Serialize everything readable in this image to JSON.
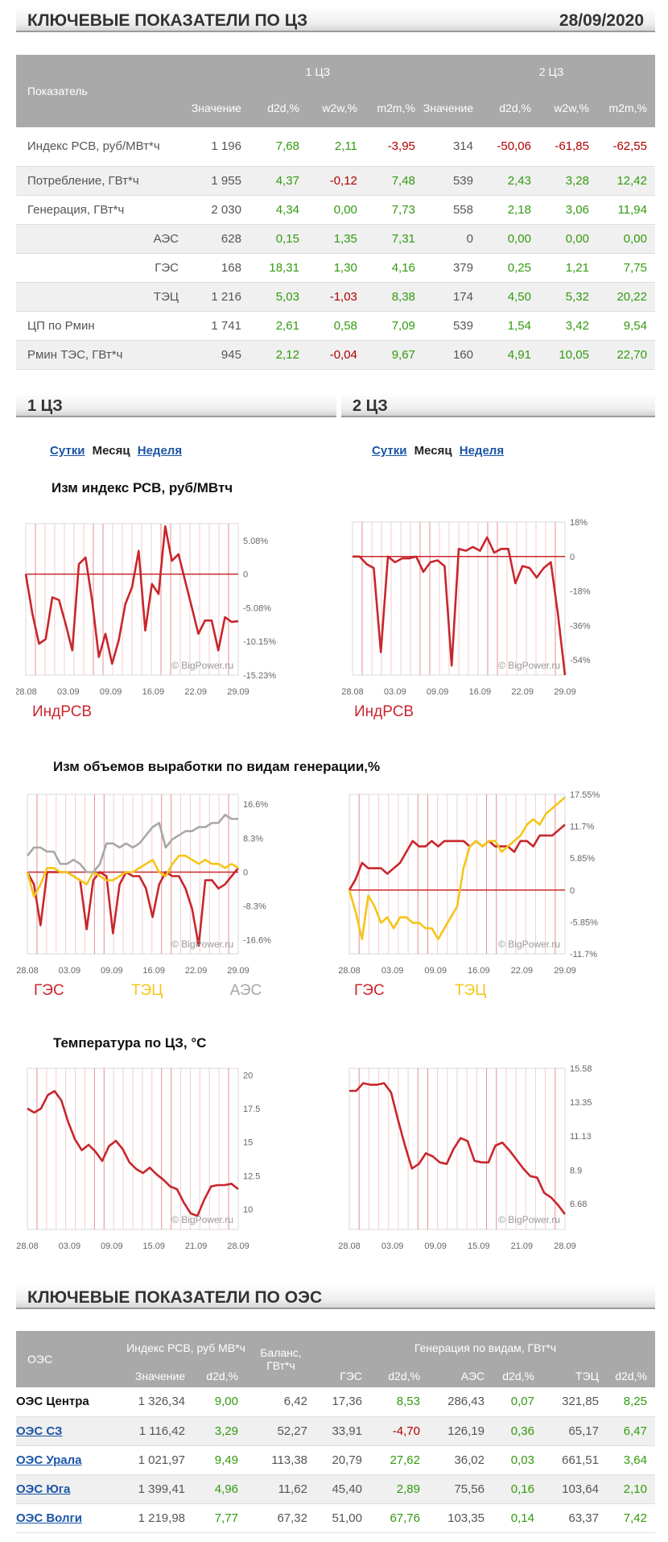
{
  "header1": {
    "title": "КЛЮЧЕВЫЕ ПОКАЗАТЕЛИ ПО ЦЗ",
    "date": "28/09/2020"
  },
  "key_table": {
    "label_col": "Показатель",
    "zone1": "1 ЦЗ",
    "zone2": "2 ЦЗ",
    "subcols": [
      "Значение",
      "d2d,%",
      "w2w,%",
      "m2m,%",
      "Значение",
      "d2d,%",
      "w2w,%",
      "m2m,%"
    ],
    "rows": [
      {
        "label": "Индекс РСВ, руб/МВт*ч",
        "v": [
          "1 196",
          "7,68",
          "2,11",
          "-3,95",
          "314",
          "-50,06",
          "-61,85",
          "-62,55"
        ]
      },
      {
        "label": "Потребление, ГВт*ч",
        "v": [
          "1 955",
          "4,37",
          "-0,12",
          "7,48",
          "539",
          "2,43",
          "3,28",
          "12,42"
        ]
      },
      {
        "label": "Генерация, ГВт*ч",
        "v": [
          "2 030",
          "4,34",
          "0,00",
          "7,73",
          "558",
          "2,18",
          "3,06",
          "11,94"
        ]
      },
      {
        "label": "АЭС",
        "v": [
          "628",
          "0,15",
          "1,35",
          "7,31",
          "0",
          "0,00",
          "0,00",
          "0,00"
        ]
      },
      {
        "label": "ГЭС",
        "v": [
          "168",
          "18,31",
          "1,30",
          "4,16",
          "379",
          "0,25",
          "1,21",
          "7,75"
        ]
      },
      {
        "label": "ТЭЦ",
        "v": [
          "1 216",
          "5,03",
          "-1,03",
          "8,38",
          "174",
          "4,50",
          "5,32",
          "20,22"
        ]
      },
      {
        "label": "ЦП по Рмин",
        "v": [
          "1 741",
          "2,61",
          "0,58",
          "7,09",
          "539",
          "1,54",
          "3,42",
          "9,54"
        ]
      },
      {
        "label": "Рмин ТЭС, ГВт*ч",
        "v": [
          "945",
          "2,12",
          "-0,04",
          "9,67",
          "160",
          "4,91",
          "10,05",
          "22,70"
        ]
      }
    ]
  },
  "zone_headers": {
    "left": "1 ЦЗ",
    "right": "2 ЦЗ"
  },
  "tabs": {
    "day": "Сутки",
    "month": "Месяц",
    "week": "Неделя"
  },
  "chart_titles": {
    "price": "Изм индекс РСВ, руб/МВтч",
    "generation": "Изм объемов выработки по видам генерации,%",
    "temperature": "Температура по ЦЗ, °C"
  },
  "watermark": "© BigPower.ru",
  "colors": {
    "red": "#c8262c",
    "yellow": "#f5c518",
    "gray": "#a8a8a8",
    "grid": "#e8a0a0",
    "green": "#329a0e",
    "neg": "#b00000"
  },
  "chart_data": [
    {
      "type": "line",
      "zone": "1 ЦЗ",
      "title": "Изм индекс РСВ, руб/МВтч",
      "xticks": [
        "28.08",
        "03.09",
        "09.09",
        "16.09",
        "22.09",
        "29.09"
      ],
      "yticks": [
        "5.08%",
        "0",
        "-5.08%",
        "-10.15%",
        "-15.23%"
      ],
      "ylim": [
        -15.23,
        7.6
      ],
      "series": [
        {
          "name": "ИндРСВ",
          "color": "#c8262c",
          "values": [
            0,
            -6,
            -10.5,
            -9.8,
            -3.5,
            -3.9,
            -7.5,
            -11.5,
            1.5,
            2.5,
            -4,
            -12.5,
            -9,
            -13.5,
            -10,
            -4.5,
            -2,
            3.5,
            -8.5,
            -1.5,
            -3,
            7.2,
            2,
            3,
            -1,
            -5,
            -9,
            -7,
            -7,
            -11.5,
            -6.5,
            -7.2,
            -7.1
          ]
        }
      ]
    },
    {
      "type": "line",
      "zone": "2 ЦЗ",
      "title": "Изм индекс РСВ, руб/МВтч",
      "xticks": [
        "28.08",
        "03.09",
        "09.09",
        "16.09",
        "22.09",
        "29.09"
      ],
      "yticks": [
        "18%",
        "0",
        "-18%",
        "-36%",
        "-54%"
      ],
      "ylim": [
        -62,
        18
      ],
      "series": [
        {
          "name": "ИндРСВ",
          "color": "#c8262c",
          "values": [
            0,
            0,
            -4,
            -6,
            -50,
            0,
            -3,
            -1,
            -1,
            0,
            -8,
            -3,
            -2,
            -5,
            -57,
            4,
            3,
            5,
            3,
            10,
            2,
            4,
            4,
            -14,
            -5,
            -6,
            -11,
            -6,
            -3,
            -30,
            -62
          ]
        }
      ]
    },
    {
      "type": "line",
      "zone": "1 ЦЗ",
      "title": "Изм объемов выработки по видам генерации,%",
      "xticks": [
        "28.08",
        "03.09",
        "09.09",
        "16.09",
        "22.09",
        "29.09"
      ],
      "yticks": [
        "16.6%",
        "8.3%",
        "0",
        "-8.3%",
        "-16.6%"
      ],
      "ylim": [
        -20,
        19
      ],
      "series": [
        {
          "name": "ГЭС",
          "color": "#c8262c",
          "values": [
            0,
            -3,
            -13,
            0,
            0,
            0,
            0,
            -1,
            -2,
            -14,
            -2,
            0,
            -1,
            -15,
            -3,
            0,
            -1,
            -1,
            -4,
            -11,
            -3,
            0,
            -1,
            -1,
            -4,
            -9,
            -18,
            -2,
            -2,
            -4,
            -3,
            -1,
            1
          ]
        },
        {
          "name": "ТЭЦ",
          "color": "#f5c518",
          "values": [
            0,
            -6,
            -3,
            1,
            1,
            0,
            0,
            -1,
            -2,
            -3,
            0,
            -1,
            -2,
            -2,
            -1,
            0,
            0,
            1,
            2,
            3,
            0,
            -1,
            2,
            4,
            4,
            3,
            2,
            3,
            2,
            2,
            1,
            2,
            1
          ]
        },
        {
          "name": "АЭС",
          "color": "#a8a8a8",
          "values": [
            4,
            6,
            6,
            5,
            5,
            2,
            2,
            3,
            2,
            0,
            0,
            2,
            7,
            7,
            6,
            7,
            6,
            7,
            9,
            11,
            12,
            6,
            8,
            9,
            10,
            10,
            11,
            11,
            12,
            12,
            14,
            13,
            13
          ]
        }
      ]
    },
    {
      "type": "line",
      "zone": "2 ЦЗ",
      "title": "Изм объемов выработки по видам генерации,%",
      "xticks": [
        "28.08",
        "03.09",
        "09.09",
        "16.09",
        "22.09",
        "29.09"
      ],
      "yticks": [
        "17.55%",
        "11.7%",
        "5.85%",
        "0",
        "-5.85%",
        "-11.7%"
      ],
      "ylim": [
        -11.7,
        17.55
      ],
      "series": [
        {
          "name": "ГЭС",
          "color": "#c8262c",
          "values": [
            0,
            2,
            5,
            4,
            4,
            4,
            3,
            4,
            5,
            7,
            9,
            8,
            8,
            9,
            8,
            9,
            9,
            9,
            9,
            8,
            9,
            8,
            9,
            8,
            8,
            8,
            7,
            9,
            9,
            8,
            10,
            10,
            10,
            11,
            12
          ]
        },
        {
          "name": "ТЭЦ",
          "color": "#f5c518",
          "values": [
            0,
            -4,
            -9,
            -1,
            -3,
            -6,
            -5,
            -7,
            -5,
            -5,
            -6,
            -6,
            -7,
            -7,
            -9,
            -7,
            -5,
            -3,
            4,
            8,
            9,
            8,
            9,
            9,
            7,
            8,
            9,
            10,
            12,
            13,
            12,
            14,
            15,
            16,
            17
          ]
        }
      ]
    },
    {
      "type": "line",
      "zone": "1 ЦЗ",
      "title": "Температура по ЦЗ, °C",
      "xticks": [
        "28.08",
        "03.09",
        "09.09",
        "15.09",
        "21.09",
        "28.09"
      ],
      "yticks": [
        "20",
        "17.5",
        "15",
        "12.5",
        "10"
      ],
      "ylim": [
        8.5,
        20.5
      ],
      "series": [
        {
          "name": "",
          "color": "#c8262c",
          "values": [
            17.5,
            17.2,
            17.5,
            18.5,
            18.8,
            18.1,
            16.5,
            15.2,
            14.4,
            14.8,
            14.3,
            13.6,
            14.7,
            15.1,
            14.5,
            13.5,
            13,
            12.7,
            13.1,
            12.6,
            12.2,
            11.7,
            11.5,
            10.5,
            9.7,
            9.5,
            10.7,
            11.7,
            11.8,
            11.8,
            11.9,
            11.5
          ]
        }
      ]
    },
    {
      "type": "line",
      "zone": "2 ЦЗ",
      "title": "Температура по ЦЗ, °C",
      "xticks": [
        "28.08",
        "03.09",
        "09.09",
        "15.09",
        "21.09",
        "28.09"
      ],
      "yticks": [
        "15.58",
        "13.35",
        "11.13",
        "8.9",
        "6.68"
      ],
      "ylim": [
        5,
        15.58
      ],
      "series": [
        {
          "name": "",
          "color": "#c8262c",
          "values": [
            14.1,
            14.1,
            14.6,
            14.5,
            14.5,
            14.6,
            14,
            12.2,
            10.5,
            9,
            9.3,
            10,
            9.8,
            9.4,
            9.3,
            10.3,
            11,
            10.8,
            9.5,
            9.4,
            9.4,
            10.5,
            10.7,
            10.2,
            9.6,
            9,
            8.5,
            8.4,
            7.4,
            7.1,
            6.6,
            6
          ]
        }
      ]
    }
  ],
  "header2": {
    "title": "КЛЮЧЕВЫЕ ПОКАЗАТЕЛИ ПО ОЭС"
  },
  "oes_table": {
    "col_oes": "ОЭС",
    "grp_price": "Индекс РСВ, руб МВ*ч",
    "grp_balance": "Баланс, ГВт*ч",
    "grp_gen": "Генерация по видам, ГВт*ч",
    "sub": [
      "Значение",
      "d2d,%",
      "ГЭС",
      "d2d,%",
      "АЭС",
      "d2d,%",
      "ТЭЦ",
      "d2d,%"
    ],
    "rows": [
      {
        "name": "ОЭС Центра",
        "v": [
          "1 326,34",
          "9,00",
          "6,42",
          "17,36",
          "8,53",
          "286,43",
          "0,07",
          "321,85",
          "8,25"
        ]
      },
      {
        "name": "ОЭС СЗ",
        "v": [
          "1 116,42",
          "3,29",
          "52,27",
          "33,91",
          "-4,70",
          "126,19",
          "0,36",
          "65,17",
          "6,47"
        ]
      },
      {
        "name": "ОЭС Урала",
        "v": [
          "1 021,97",
          "9,49",
          "113,38",
          "20,79",
          "27,62",
          "36,02",
          "0,03",
          "661,51",
          "3,64"
        ]
      },
      {
        "name": "ОЭС Юга",
        "v": [
          "1 399,41",
          "4,96",
          "11,62",
          "45,40",
          "2,89",
          "75,56",
          "0,16",
          "103,64",
          "2,10"
        ]
      },
      {
        "name": "ОЭС Волги",
        "v": [
          "1 219,98",
          "7,77",
          "67,32",
          "51,00",
          "67,76",
          "103,35",
          "0,14",
          "63,37",
          "7,42"
        ]
      }
    ]
  }
}
